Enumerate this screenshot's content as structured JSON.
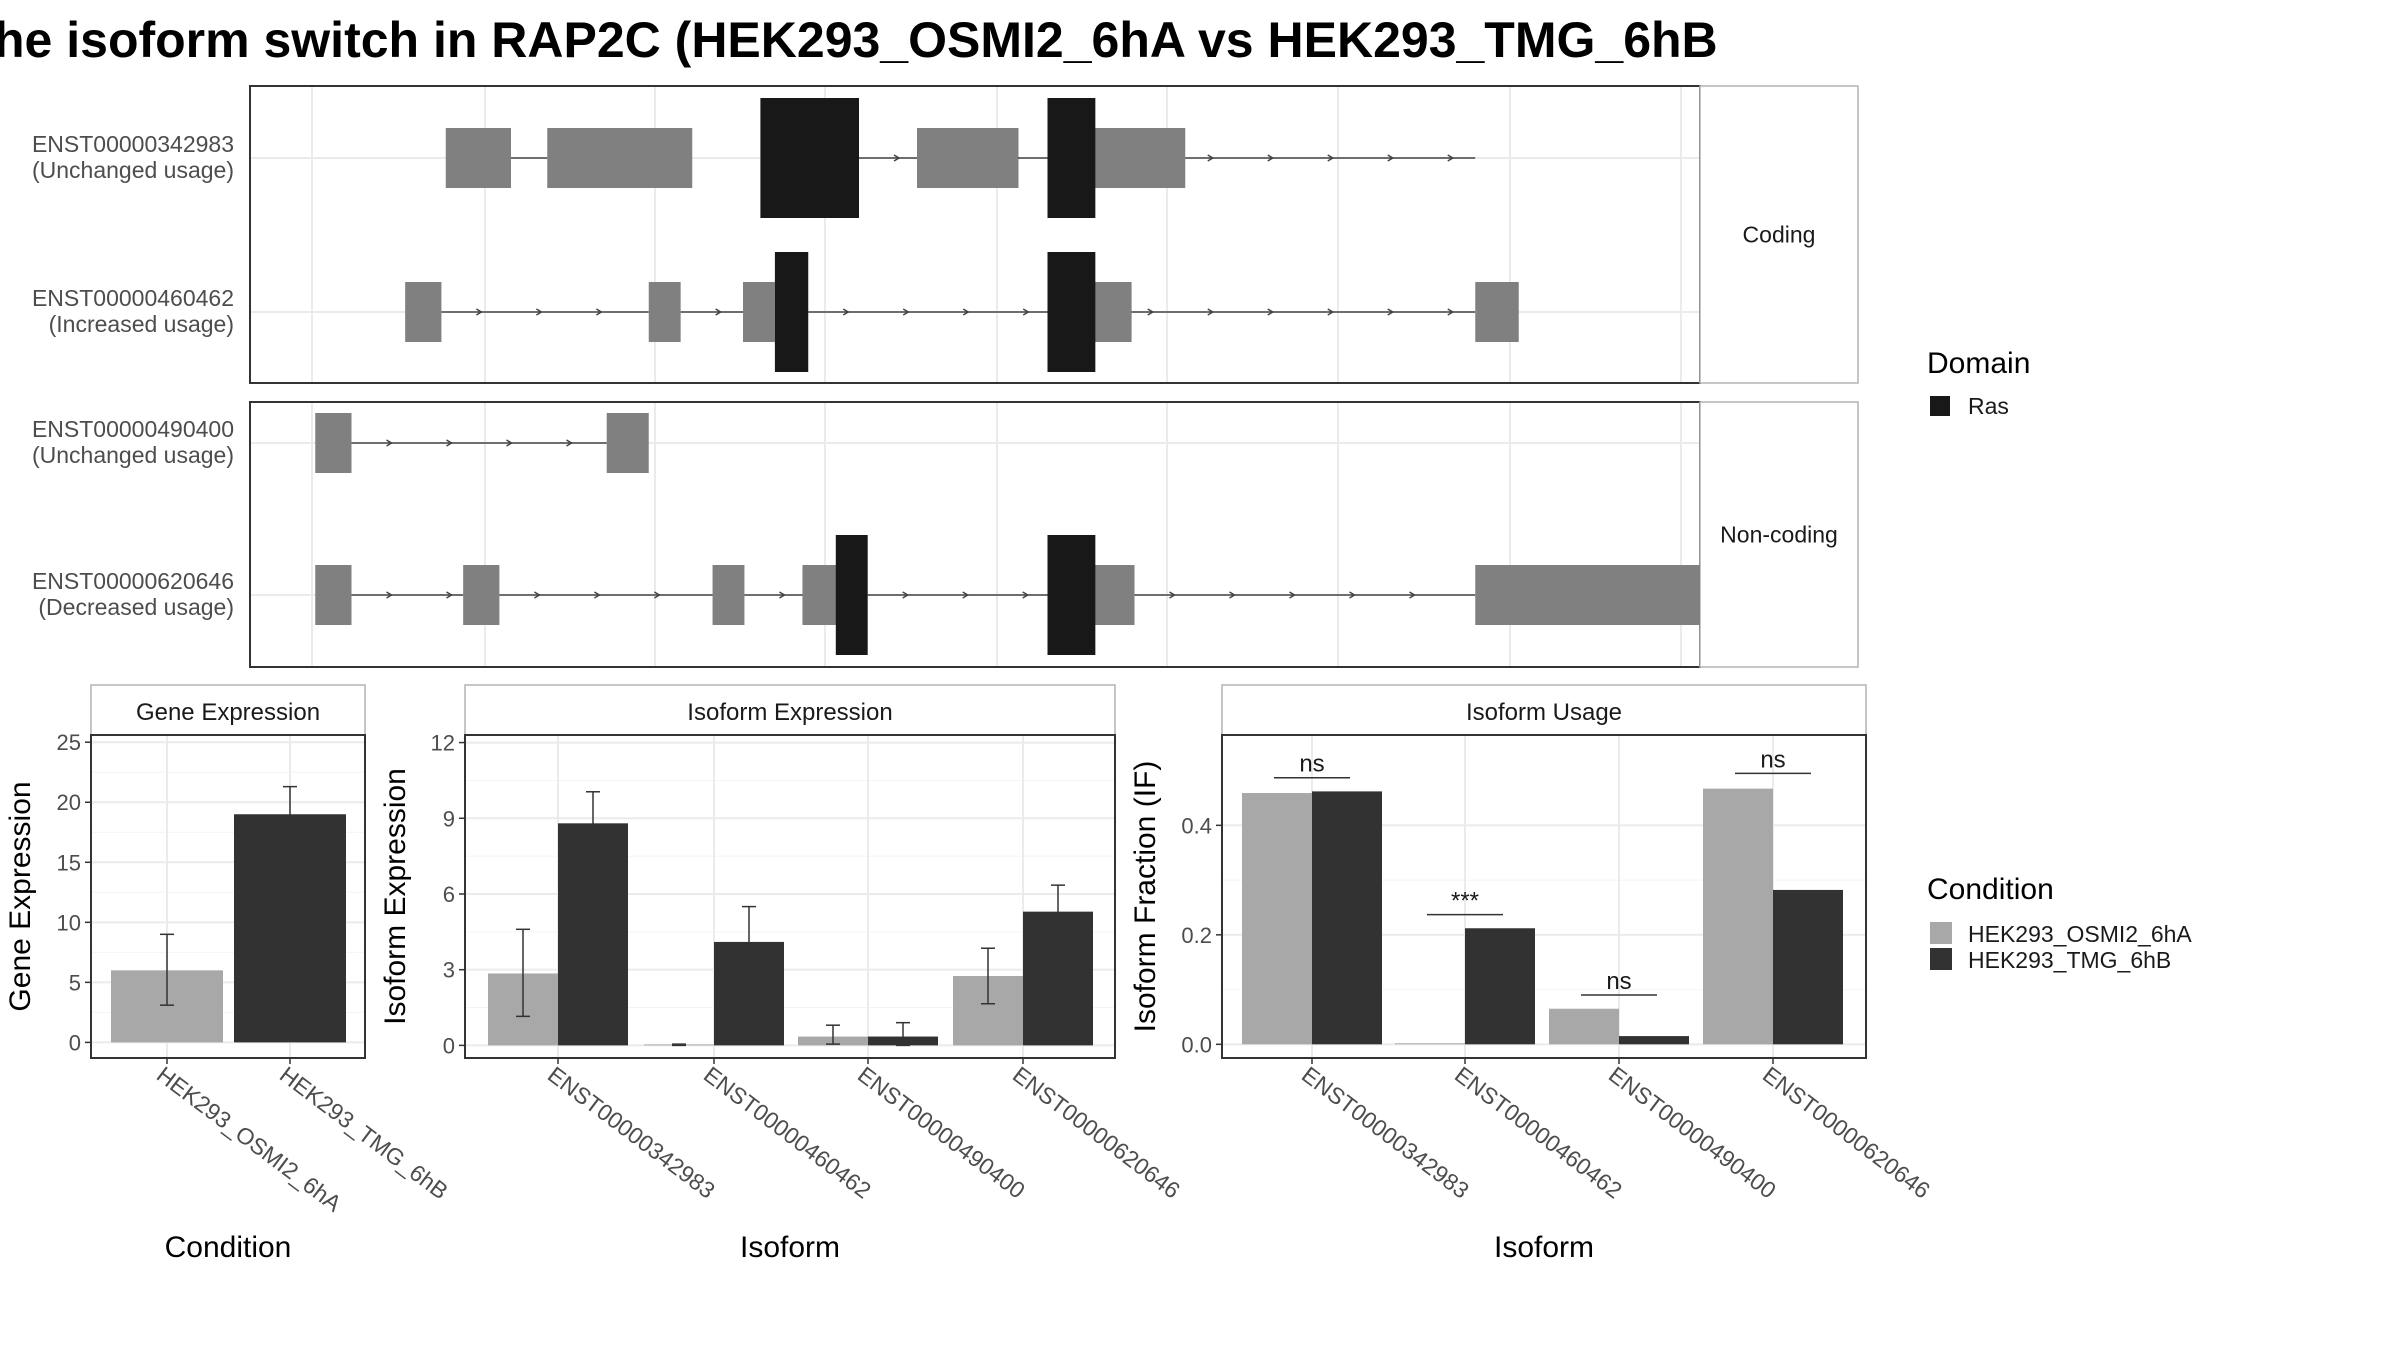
{
  "title": "he isoform switch in RAP2C (HEK293_OSMI2_6hA vs HEK293_TMG_6hB",
  "colors": {
    "exon": "#808080",
    "domain": "#181818",
    "cond1": "#a8a8a8",
    "cond2": "#323232",
    "grid": "#ebebeb",
    "frame": "#333333",
    "strip_border": "#b3b3b3",
    "text": "#1a1a1a",
    "tick_text": "#4d4d4d"
  },
  "structure": {
    "facets": [
      "Coding",
      "Non-coding"
    ],
    "transcripts": [
      {
        "id": "ENST00000342983",
        "usage": "(Unchanged usage)",
        "facet": 0
      },
      {
        "id": "ENST00000460462",
        "usage": "(Increased usage)",
        "facet": 0
      },
      {
        "id": "ENST00000490400",
        "usage": "(Unchanged usage)",
        "facet": 1
      },
      {
        "id": "ENST00000620646",
        "usage": "(Decreased usage)",
        "facet": 1
      }
    ]
  },
  "legends": {
    "domain": {
      "title": "Domain",
      "items": [
        {
          "label": "Ras",
          "color": "#181818"
        }
      ]
    },
    "condition": {
      "title": "Condition",
      "items": [
        {
          "label": "HEK293_OSMI2_6hA",
          "color": "#a8a8a8"
        },
        {
          "label": "HEK293_TMG_6hB",
          "color": "#323232"
        }
      ]
    }
  },
  "chart_data": [
    {
      "type": "gene-structure",
      "title": "he isoform switch in RAP2C (HEK293_OSMI2_6hA vs HEK293_TMG_6hB",
      "x_range": [
        0,
        1000
      ],
      "tracks": [
        {
          "id": "ENST00000342983",
          "facet": "Coding",
          "exons": [
            [
              135,
              180
            ],
            [
              205,
              305
            ],
            [
              460,
              530
            ],
            [
              575,
              645
            ]
          ],
          "domain": [
            [
              352,
              420
            ],
            [
              550,
              583
            ]
          ],
          "introns": [
            [
              180,
              205
            ],
            [
              420,
              550
            ],
            [
              595,
              845
            ]
          ]
        },
        {
          "id": "ENST00000460462",
          "facet": "Coding",
          "exons": [
            [
              107,
              132
            ],
            [
              275,
              297
            ],
            [
              340,
              362
            ],
            [
              575,
              608
            ],
            [
              845,
              875
            ]
          ],
          "domain": [
            [
              362,
              385
            ],
            [
              550,
              583
            ]
          ],
          "introns": [
            [
              132,
              275
            ],
            [
              297,
              340
            ],
            [
              385,
              550
            ],
            [
              595,
              845
            ]
          ]
        },
        {
          "id": "ENST00000490400",
          "facet": "Non-coding",
          "exons": [
            [
              45,
              70
            ],
            [
              246,
              275
            ]
          ],
          "domain": [],
          "introns": [
            [
              70,
              246
            ]
          ]
        },
        {
          "id": "ENST00000620646",
          "facet": "Non-coding",
          "exons": [
            [
              45,
              70
            ],
            [
              147,
              172
            ],
            [
              319,
              341
            ],
            [
              381,
              405
            ],
            [
              575,
              610
            ],
            [
              845,
              1000
            ]
          ],
          "domain": [
            [
              404,
              426
            ],
            [
              550,
              583
            ]
          ],
          "introns": [
            [
              70,
              147
            ],
            [
              172,
              319
            ],
            [
              341,
              381
            ],
            [
              426,
              550
            ],
            [
              610,
              845
            ]
          ]
        }
      ]
    },
    {
      "type": "bar",
      "title": "Gene Expression",
      "xlabel": "Condition",
      "ylabel": "Gene Expression",
      "ylim": [
        -1.3,
        25.6
      ],
      "yticks": [
        0,
        5,
        10,
        15,
        20,
        25
      ],
      "categories": [
        "HEK293_OSMI2_6hA",
        "HEK293_TMG_6hB"
      ],
      "values": [
        6.0,
        19.0
      ],
      "error": [
        [
          3.1,
          9.0
        ],
        [
          16.8,
          21.3
        ]
      ],
      "colors": [
        "#a8a8a8",
        "#323232"
      ]
    },
    {
      "type": "bar",
      "title": "Isoform Expression",
      "xlabel": "Isoform",
      "ylabel": "Isoform Expression",
      "ylim": [
        -0.5,
        12.3
      ],
      "yticks": [
        0,
        3,
        6,
        9,
        12
      ],
      "categories": [
        "ENST00000342983",
        "ENST00000460462",
        "ENST00000490400",
        "ENST00000620646"
      ],
      "series": [
        {
          "name": "HEK293_OSMI2_6hA",
          "values": [
            2.85,
            0.02,
            0.35,
            2.75
          ],
          "error": [
            [
              1.15,
              4.6
            ],
            [
              0.0,
              0.05
            ],
            [
              0.05,
              0.8
            ],
            [
              1.65,
              3.85
            ]
          ]
        },
        {
          "name": "HEK293_TMG_6hB",
          "values": [
            8.8,
            4.1,
            0.35,
            5.3
          ],
          "error": [
            [
              7.5,
              10.05
            ],
            [
              2.7,
              5.5
            ],
            [
              0.0,
              0.9
            ],
            [
              4.3,
              6.35
            ]
          ]
        }
      ]
    },
    {
      "type": "bar",
      "title": "Isoform Usage",
      "xlabel": "Isoform",
      "ylabel": "Isoform Fraction (IF)",
      "ylim": [
        -0.025,
        0.565
      ],
      "yticks": [
        "0.0",
        "0.2",
        "0.4"
      ],
      "categories": [
        "ENST00000342983",
        "ENST00000460462",
        "ENST00000490400",
        "ENST00000620646"
      ],
      "series": [
        {
          "name": "HEK293_OSMI2_6hA",
          "values": [
            0.459,
            0.0,
            0.065,
            0.467
          ]
        },
        {
          "name": "HEK293_TMG_6hB",
          "values": [
            0.462,
            0.212,
            0.015,
            0.282
          ]
        }
      ],
      "significance": [
        {
          "label": "ns",
          "y": 0.487
        },
        {
          "label": "***",
          "y": 0.237
        },
        {
          "label": "ns",
          "y": 0.09
        },
        {
          "label": "ns",
          "y": 0.495
        }
      ]
    }
  ]
}
